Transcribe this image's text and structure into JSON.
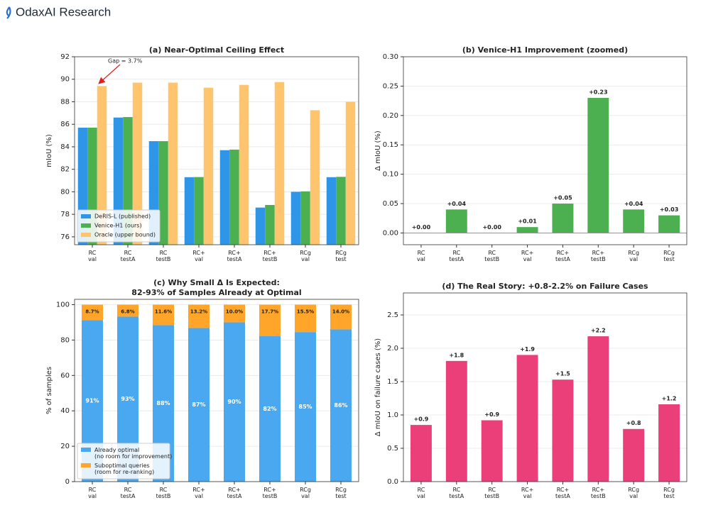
{
  "header": {
    "title": "OdaxAI Research"
  },
  "chart_data": [
    {
      "type": "bar",
      "title": "(a) Near-Optimal Ceiling Effect",
      "ylabel": "mIoU (%)",
      "categories": [
        "RC\nval",
        "RC\ntestA",
        "RC\ntestB",
        "RC+\nval",
        "RC+\ntestA",
        "RC+\ntestB",
        "RCg\nval",
        "RCg\ntest"
      ],
      "series": [
        {
          "name": "DeRIS-L (published)",
          "color": "#2f95e6",
          "values": [
            85.7,
            86.6,
            84.5,
            81.3,
            83.7,
            78.6,
            80.0,
            81.3
          ]
        },
        {
          "name": "Venice-H1 (ours)",
          "color": "#4caf50",
          "values": [
            85.7,
            86.64,
            84.5,
            81.31,
            83.75,
            78.83,
            80.04,
            81.33
          ]
        },
        {
          "name": "Oracle (upper bound)",
          "color": "#ffc46e",
          "values": [
            89.4,
            89.7,
            89.7,
            89.25,
            89.5,
            89.75,
            87.25,
            88.0
          ]
        }
      ],
      "ylim": [
        75.3,
        92
      ],
      "yticks": [
        76,
        78,
        80,
        82,
        84,
        86,
        88,
        90,
        92
      ],
      "grid": true,
      "legend": "lower left",
      "annotation": "Gap = 3.7%"
    },
    {
      "type": "bar",
      "title": "(b) Venice-H1 Improvement (zoomed)",
      "ylabel": "Δ mIoU (%)",
      "categories": [
        "RC\nval",
        "RC\ntestA",
        "RC\ntestB",
        "RC+\nval",
        "RC+\ntestA",
        "RC+\ntestB",
        "RCg\nval",
        "RCg\ntest"
      ],
      "series": [
        {
          "color": "#4caf50",
          "values": [
            0.0,
            0.04,
            0.0,
            0.01,
            0.05,
            0.23,
            0.04,
            0.03
          ],
          "value_labels": [
            "+0.00",
            "+0.04",
            "+0.00",
            "+0.01",
            "+0.05",
            "+0.23",
            "+0.04",
            "+0.03"
          ]
        }
      ],
      "ylim": [
        -0.02,
        0.3
      ],
      "yticks": [
        {
          "value": 0,
          "label": "0.00"
        },
        {
          "value": 0.05,
          "label": "0.05"
        },
        {
          "value": 0.1,
          "label": "0.10"
        },
        {
          "value": 0.15,
          "label": "0.15"
        },
        {
          "value": 0.2,
          "label": "0.20"
        },
        {
          "value": 0.25,
          "label": "0.25"
        },
        {
          "value": 0.3,
          "label": "0.30"
        }
      ],
      "grid": true
    },
    {
      "type": "bar",
      "stacked": true,
      "title": "(c) Why Small Δ Is Expected:\n82-93% of Samples Already at Optimal",
      "ylabel": "% of samples",
      "categories": [
        "RC\nval",
        "RC\ntestA",
        "RC\ntestB",
        "RC+\nval",
        "RC+\ntestA",
        "RC+\ntestB",
        "RCg\nval",
        "RCg\ntest"
      ],
      "series": [
        {
          "name": "Already optimal\n(no room for improvement)",
          "color": "#4aa8f0",
          "values": [
            91.3,
            93.2,
            88.4,
            86.8,
            90.0,
            82.3,
            84.5,
            86.0
          ],
          "value_labels": [
            "91%",
            "93%",
            "88%",
            "87%",
            "90%",
            "82%",
            "85%",
            "86%"
          ]
        },
        {
          "name": "Suboptimal queries\n(room for re-ranking)",
          "color": "#ffa52a",
          "values": [
            8.7,
            6.8,
            11.6,
            13.2,
            10.0,
            17.7,
            15.5,
            14.0
          ],
          "value_labels": [
            "8.7%",
            "6.8%",
            "11.6%",
            "13.2%",
            "10.0%",
            "17.7%",
            "15.5%",
            "14.0%"
          ]
        }
      ],
      "ylim": [
        0,
        103
      ],
      "yticks": [
        0,
        20,
        40,
        60,
        80,
        100
      ],
      "grid": true,
      "legend": "lower left"
    },
    {
      "type": "bar",
      "title": "(d) The Real Story: +0.8-2.2% on Failure Cases",
      "ylabel": "Δ mIoU on failure cases (%)",
      "categories": [
        "RC\nval",
        "RC\ntestA",
        "RC\ntestB",
        "RC+\nval",
        "RC+\ntestA",
        "RC+\ntestB",
        "RCg\nval",
        "RCg\ntest"
      ],
      "series": [
        {
          "color": "#ea3f78",
          "values": [
            0.85,
            1.81,
            0.92,
            1.9,
            1.53,
            2.18,
            0.79,
            1.16
          ],
          "value_labels": [
            "+0.9",
            "+1.8",
            "+0.9",
            "+1.9",
            "+1.5",
            "+2.2",
            "+0.8",
            "+1.2"
          ]
        }
      ],
      "ylim": [
        0,
        2.83
      ],
      "yticks": [
        {
          "value": 0,
          "label": "0.0"
        },
        {
          "value": 0.5,
          "label": "0.5"
        },
        {
          "value": 1,
          "label": "1.0"
        },
        {
          "value": 1.5,
          "label": "1.5"
        },
        {
          "value": 2,
          "label": "2.0"
        },
        {
          "value": 2.5,
          "label": "2.5"
        }
      ],
      "grid": true
    }
  ]
}
